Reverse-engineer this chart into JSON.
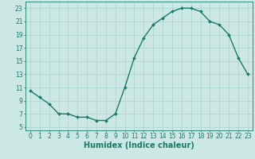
{
  "x": [
    0,
    1,
    2,
    3,
    4,
    5,
    6,
    7,
    8,
    9,
    10,
    11,
    12,
    13,
    14,
    15,
    16,
    17,
    18,
    19,
    20,
    21,
    22,
    23
  ],
  "y": [
    10.5,
    9.5,
    8.5,
    7.0,
    7.0,
    6.5,
    6.5,
    6.0,
    6.0,
    7.0,
    11.0,
    15.5,
    18.5,
    20.5,
    21.5,
    22.5,
    23.0,
    23.0,
    22.5,
    21.0,
    20.5,
    19.0,
    15.5,
    13.0
  ],
  "line_color": "#1a7a6a",
  "marker": "D",
  "marker_size": 2,
  "line_width": 1.0,
  "bg_color": "#cce8e4",
  "grid_color": "#aad4ce",
  "xlabel": "Humidex (Indice chaleur)",
  "xlabel_fontsize": 7,
  "xlabel_color": "#1a7a6a",
  "tick_color": "#1a7a6a",
  "tick_fontsize": 5.5,
  "ylim": [
    4.5,
    24
  ],
  "xlim": [
    -0.5,
    23.5
  ],
  "yticks": [
    5,
    7,
    9,
    11,
    13,
    15,
    17,
    19,
    21,
    23
  ],
  "xticks": [
    0,
    1,
    2,
    3,
    4,
    5,
    6,
    7,
    8,
    9,
    10,
    11,
    12,
    13,
    14,
    15,
    16,
    17,
    18,
    19,
    20,
    21,
    22,
    23
  ]
}
